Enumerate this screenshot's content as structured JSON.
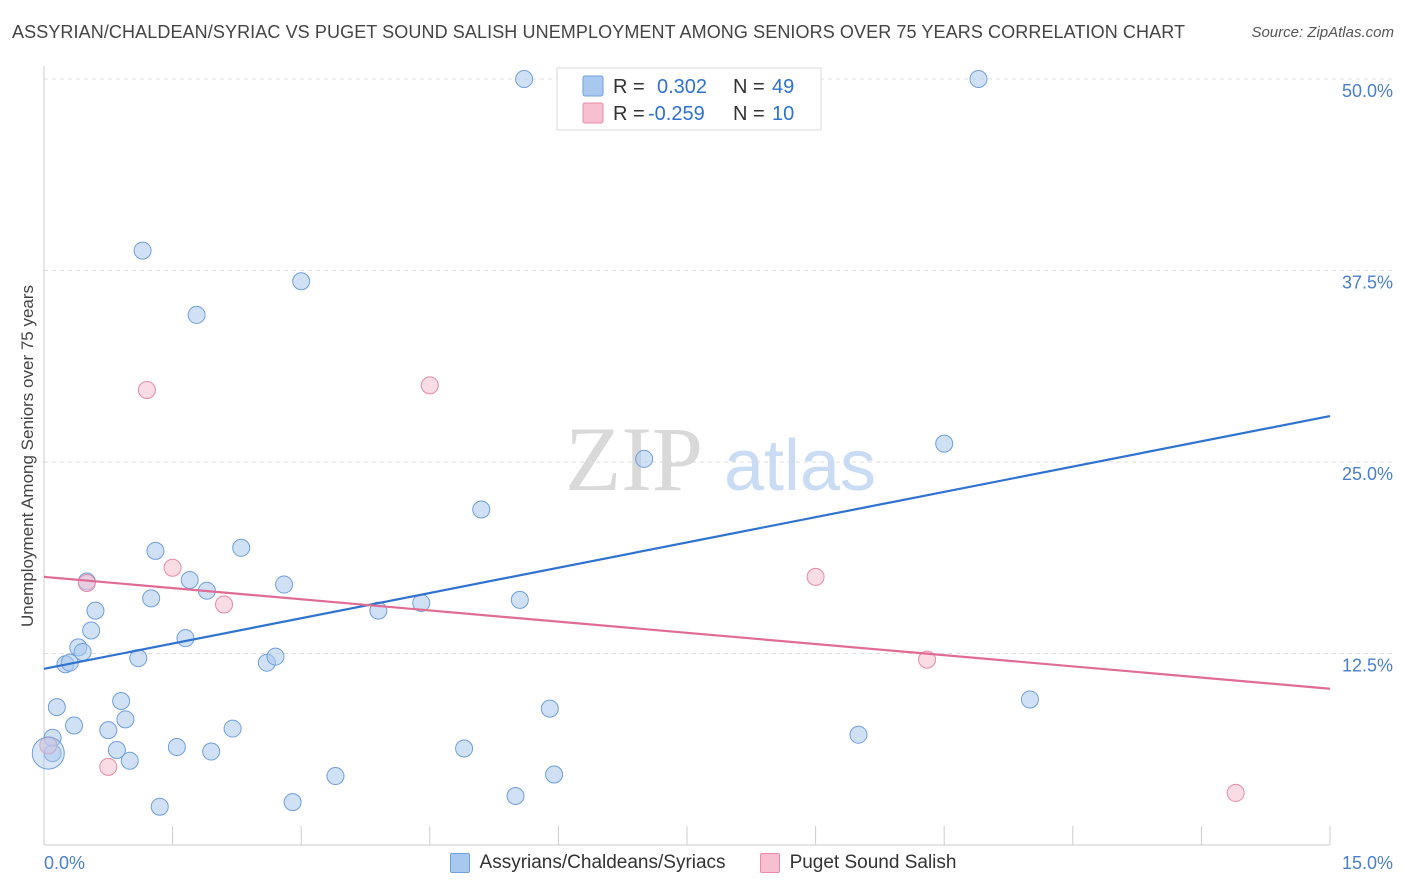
{
  "chart_data": {
    "type": "scatter",
    "title": "ASSYRIAN/CHALDEAN/SYRIAC VS PUGET SOUND SALISH UNEMPLOYMENT AMONG SENIORS OVER 75 YEARS CORRELATION CHART",
    "source": "Source: ZipAtlas.com",
    "ylabel": "Unemployment Among Seniors over 75 years",
    "xlim": [
      0,
      15
    ],
    "ylim": [
      0,
      52
    ],
    "x_tick_labels": [
      "0.0%",
      "15.0%"
    ],
    "y_ticks": [
      12.5,
      25.0,
      37.5,
      50.0
    ],
    "y_tick_labels": [
      "12.5%",
      "25.0%",
      "37.5%",
      "50.0%"
    ],
    "watermark": {
      "zip": "ZIP",
      "atlas": "atlas"
    },
    "stats": [
      {
        "r_label": "R =",
        "r": "0.302",
        "n_label": "N =",
        "n": "49"
      },
      {
        "r_label": "R =",
        "r": "-0.259",
        "n_label": "N =",
        "n": "10"
      }
    ],
    "series": [
      {
        "name": "Assyrians/Chaldeans/Syriacs",
        "color": "#a9c8ef",
        "stroke": "#6f9fdc",
        "line_color": "#2f72cf",
        "trend": {
          "x": [
            0,
            15
          ],
          "y": [
            11.5,
            28.0
          ]
        },
        "points": [
          [
            0.1,
            6.0
          ],
          [
            0.1,
            7.0
          ],
          [
            0.15,
            9.0
          ],
          [
            0.25,
            11.8
          ],
          [
            0.3,
            11.9
          ],
          [
            0.35,
            7.8
          ],
          [
            0.4,
            12.9
          ],
          [
            0.45,
            12.6
          ],
          [
            0.5,
            17.2
          ],
          [
            0.55,
            14.0
          ],
          [
            0.6,
            15.3
          ],
          [
            0.75,
            7.5
          ],
          [
            0.85,
            6.2
          ],
          [
            0.9,
            9.4
          ],
          [
            0.95,
            8.2
          ],
          [
            1.0,
            5.5
          ],
          [
            1.1,
            12.2
          ],
          [
            1.15,
            38.8
          ],
          [
            1.25,
            16.1
          ],
          [
            1.3,
            19.2
          ],
          [
            1.35,
            2.5
          ],
          [
            1.55,
            6.4
          ],
          [
            1.65,
            13.5
          ],
          [
            1.7,
            17.3
          ],
          [
            1.78,
            34.6
          ],
          [
            1.9,
            16.6
          ],
          [
            1.95,
            6.1
          ],
          [
            2.2,
            7.6
          ],
          [
            2.3,
            19.4
          ],
          [
            2.6,
            11.9
          ],
          [
            2.7,
            12.3
          ],
          [
            2.8,
            17.0
          ],
          [
            2.9,
            2.8
          ],
          [
            3.0,
            36.8
          ],
          [
            3.4,
            4.5
          ],
          [
            3.9,
            15.3
          ],
          [
            4.4,
            15.8
          ],
          [
            4.9,
            6.3
          ],
          [
            5.1,
            21.9
          ],
          [
            5.5,
            3.2
          ],
          [
            5.55,
            16.0
          ],
          [
            5.6,
            50.0
          ],
          [
            5.9,
            8.9
          ],
          [
            5.95,
            4.6
          ],
          [
            7.0,
            25.2
          ],
          [
            9.5,
            7.2
          ],
          [
            10.5,
            26.2
          ],
          [
            10.9,
            50.0
          ],
          [
            11.5,
            9.5
          ]
        ]
      },
      {
        "name": "Puget Sound Salish",
        "color": "#f6c0d0",
        "stroke": "#e88aa8",
        "line_color": "#e06c95",
        "trend": {
          "x": [
            0,
            15
          ],
          "y": [
            17.5,
            10.2
          ]
        },
        "points": [
          [
            0.05,
            6.5
          ],
          [
            0.5,
            17.1
          ],
          [
            0.75,
            5.1
          ],
          [
            1.2,
            29.7
          ],
          [
            1.5,
            18.1
          ],
          [
            2.1,
            15.7
          ],
          [
            4.5,
            30.0
          ],
          [
            9.0,
            17.5
          ],
          [
            10.3,
            12.1
          ],
          [
            13.9,
            3.4
          ]
        ]
      }
    ]
  }
}
